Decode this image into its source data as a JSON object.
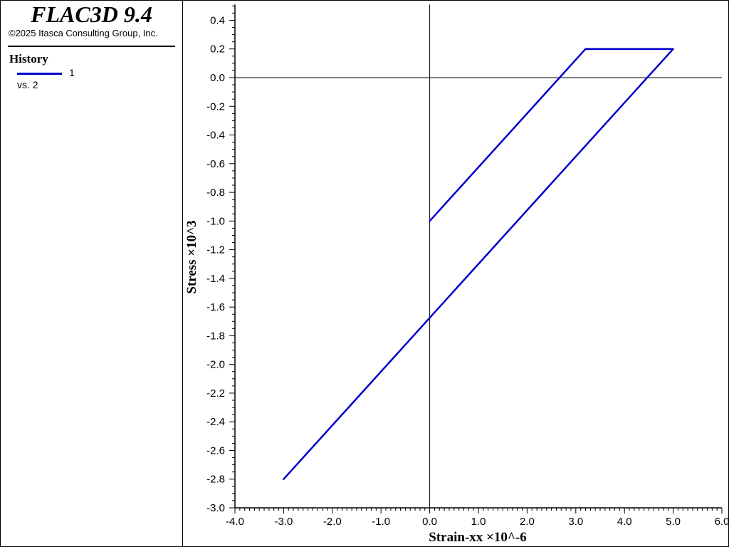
{
  "header": {
    "app_title": "FLAC3D 9.4",
    "copyright": "©2025 Itasca Consulting Group, Inc."
  },
  "legend": {
    "heading": "History",
    "series_label": "1",
    "vs_label": "vs. 2",
    "line_color": "#0000cc",
    "line_icon": "blue-line-swatch"
  },
  "chart_data": {
    "type": "line",
    "xlabel": "Strain-xx ×10^-6",
    "ylabel": "Stress ×10^3",
    "xlim": [
      -4.0,
      6.0
    ],
    "ylim": [
      -3.0,
      0.5
    ],
    "x_ticks": [
      "-4.0",
      "-3.0",
      "-2.0",
      "-1.0",
      "0.0",
      "1.0",
      "2.0",
      "3.0",
      "4.0",
      "5.0",
      "6.0"
    ],
    "y_ticks": [
      "0.4",
      "0.2",
      "0.0",
      "-0.2",
      "-0.4",
      "-0.6",
      "-0.8",
      "-1.0",
      "-1.2",
      "-1.4",
      "-1.6",
      "-1.8",
      "-2.0",
      "-2.2",
      "-2.4",
      "-2.6",
      "-2.8",
      "-3.0"
    ],
    "grid": false,
    "zero_lines": true,
    "legend_position": "left-panel",
    "series": [
      {
        "color": "#0000cc",
        "points": [
          [
            0.0,
            -1.0
          ],
          [
            3.2,
            0.2
          ],
          [
            5.0,
            0.2
          ],
          [
            -3.0,
            -2.8
          ]
        ]
      }
    ]
  }
}
